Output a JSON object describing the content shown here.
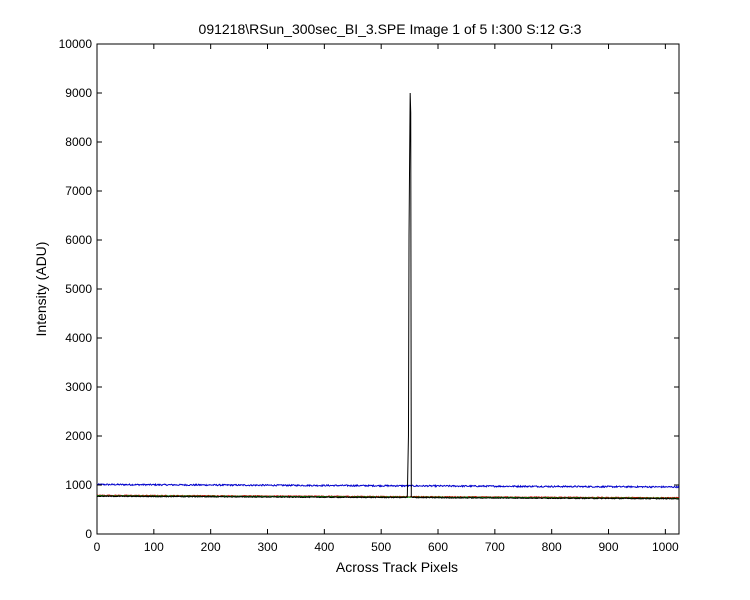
{
  "chart_data": {
    "type": "line",
    "title": "091218\\RSun_300sec_BI_3.SPE  Image 1 of 5  I:300  S:12  G:3",
    "xlabel": "Across Track Pixels",
    "ylabel": "Intensity (ADU)",
    "xlim": [
      0,
      1024
    ],
    "ylim": [
      0,
      10000
    ],
    "xticks": [
      0,
      100,
      200,
      300,
      400,
      500,
      600,
      700,
      800,
      900,
      1000
    ],
    "yticks": [
      0,
      1000,
      2000,
      3000,
      4000,
      5000,
      6000,
      7000,
      8000,
      9000,
      10000
    ],
    "grid": false,
    "legend": "none",
    "series": [
      {
        "color": "#0000cc",
        "x": [
          0,
          100,
          200,
          300,
          400,
          500,
          600,
          700,
          800,
          900,
          1024
        ],
        "y": [
          1010,
          1005,
          1000,
          995,
          990,
          985,
          980,
          975,
          970,
          965,
          960
        ],
        "noise": 15
      },
      {
        "color": "#cc0000",
        "x": [
          0,
          100,
          200,
          300,
          400,
          500,
          600,
          700,
          800,
          900,
          1024
        ],
        "y": [
          790,
          785,
          780,
          775,
          770,
          765,
          760,
          755,
          750,
          745,
          740
        ],
        "noise": 8
      },
      {
        "color": "#008000",
        "x": [
          0,
          100,
          200,
          300,
          400,
          500,
          600,
          700,
          800,
          900,
          1024
        ],
        "y": [
          780,
          775,
          770,
          765,
          760,
          755,
          750,
          745,
          740,
          735,
          730
        ],
        "noise": 8
      },
      {
        "color": "#000000",
        "x": [
          0,
          100,
          200,
          300,
          400,
          500,
          544,
          546,
          548,
          549,
          550,
          551,
          552,
          553,
          555,
          600,
          700,
          800,
          900,
          1024
        ],
        "y": [
          770,
          765,
          760,
          755,
          750,
          745,
          745,
          760,
          2000,
          6100,
          7600,
          9000,
          8600,
          760,
          745,
          740,
          735,
          730,
          725,
          720
        ],
        "noise": 8
      }
    ]
  }
}
